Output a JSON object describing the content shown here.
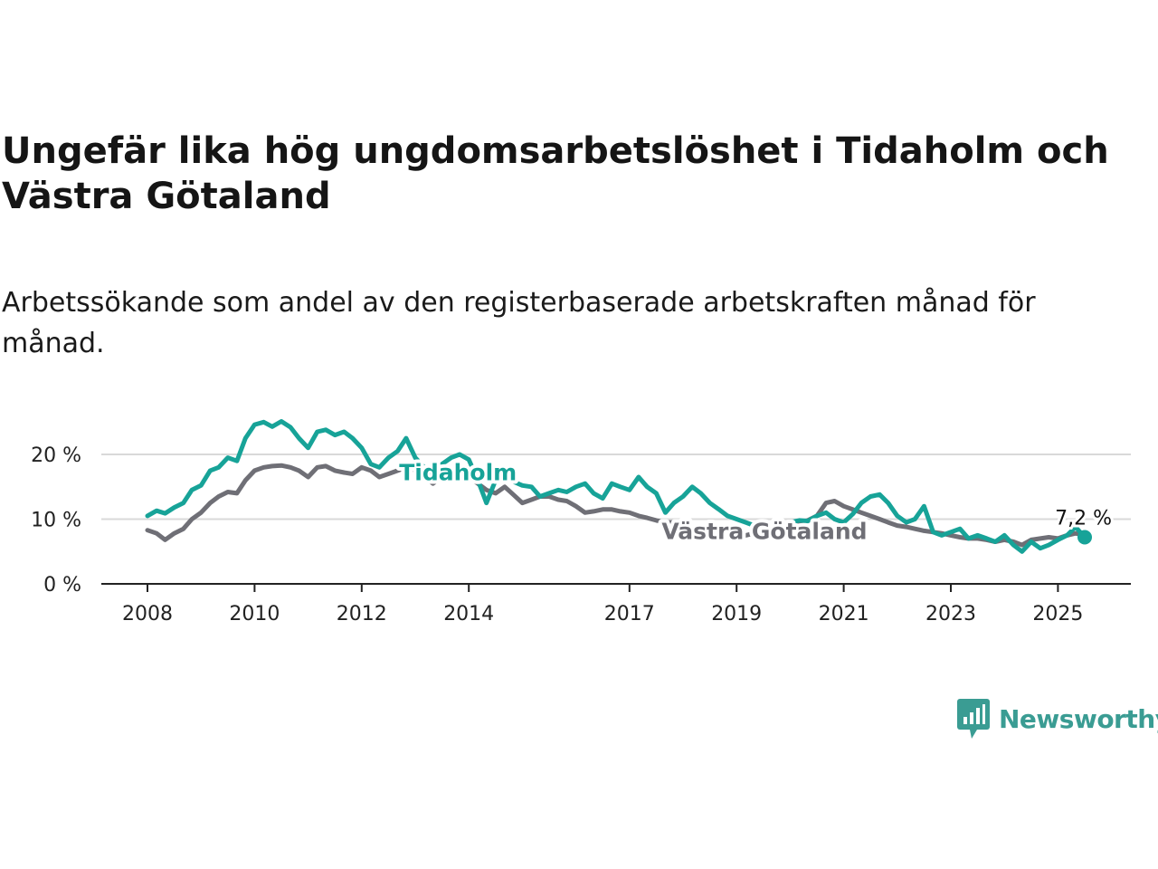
{
  "title": "Ungefär lika hög ungdomsarbetslöshet i Tidaholm och Västra Götaland",
  "subtitle": "Arbetssökande som andel av den registerbaserade arbetskraften månad för månad.",
  "brand": {
    "name": "Newsworthy",
    "icon": "newsworthy-logo-icon",
    "color": "#3a9c93"
  },
  "colors": {
    "tidaholm": "#17a398",
    "vastra_gotaland": "#6f6f76",
    "grid": "#d9d9d9",
    "axis": "#222222"
  },
  "chart_data": {
    "type": "line",
    "title": "Ungefär lika hög ungdomsarbetslöshet i Tidaholm och Västra Götaland",
    "xlabel": "",
    "ylabel": "",
    "xlim": [
      2008.0,
      2025.5
    ],
    "ylim": [
      0,
      20
    ],
    "y_ticks": [
      0,
      10,
      20
    ],
    "y_tick_labels": [
      "0 %",
      "10 %",
      "20 %"
    ],
    "x_ticks": [
      2008,
      2010,
      2012,
      2014,
      2017,
      2019,
      2021,
      2023,
      2025
    ],
    "x_tick_labels": [
      "2008",
      "2010",
      "2012",
      "2014",
      "2017",
      "2019",
      "2021",
      "2023",
      "2025"
    ],
    "grid": true,
    "end_label": "7,2 %",
    "series": [
      {
        "name": "Tidaholm",
        "color": "#17a398",
        "points": [
          [
            2008.0,
            10.5
          ],
          [
            2008.17,
            11.3
          ],
          [
            2008.33,
            10.9
          ],
          [
            2008.5,
            11.8
          ],
          [
            2008.67,
            12.5
          ],
          [
            2008.83,
            14.5
          ],
          [
            2009.0,
            15.2
          ],
          [
            2009.17,
            17.5
          ],
          [
            2009.33,
            18.0
          ],
          [
            2009.5,
            19.5
          ],
          [
            2009.67,
            19.0
          ],
          [
            2009.83,
            22.5
          ],
          [
            2010.0,
            24.6
          ],
          [
            2010.17,
            25.0
          ],
          [
            2010.33,
            24.3
          ],
          [
            2010.5,
            25.1
          ],
          [
            2010.67,
            24.2
          ],
          [
            2010.83,
            22.5
          ],
          [
            2011.0,
            21.0
          ],
          [
            2011.17,
            23.5
          ],
          [
            2011.33,
            23.8
          ],
          [
            2011.5,
            23.0
          ],
          [
            2011.67,
            23.5
          ],
          [
            2011.83,
            22.5
          ],
          [
            2012.0,
            21.0
          ],
          [
            2012.17,
            18.5
          ],
          [
            2012.33,
            18.0
          ],
          [
            2012.5,
            19.5
          ],
          [
            2012.67,
            20.5
          ],
          [
            2012.83,
            22.5
          ],
          [
            2013.0,
            19.5
          ],
          [
            2013.17,
            18.0
          ],
          [
            2013.33,
            16.5
          ],
          [
            2013.5,
            18.5
          ],
          [
            2013.67,
            19.5
          ],
          [
            2013.83,
            20.0
          ],
          [
            2014.0,
            19.2
          ],
          [
            2014.17,
            16.0
          ],
          [
            2014.33,
            12.5
          ],
          [
            2014.5,
            16.0
          ],
          [
            2014.67,
            16.5
          ],
          [
            2014.83,
            15.8
          ],
          [
            2015.0,
            15.2
          ],
          [
            2015.17,
            15.0
          ],
          [
            2015.33,
            13.5
          ],
          [
            2015.5,
            14.0
          ],
          [
            2015.67,
            14.5
          ],
          [
            2015.83,
            14.2
          ],
          [
            2016.0,
            15.0
          ],
          [
            2016.17,
            15.5
          ],
          [
            2016.33,
            14.0
          ],
          [
            2016.5,
            13.2
          ],
          [
            2016.67,
            15.5
          ],
          [
            2016.83,
            15.0
          ],
          [
            2017.0,
            14.5
          ],
          [
            2017.17,
            16.5
          ],
          [
            2017.33,
            15.0
          ],
          [
            2017.5,
            14.0
          ],
          [
            2017.67,
            11.0
          ],
          [
            2017.83,
            12.5
          ],
          [
            2018.0,
            13.5
          ],
          [
            2018.17,
            15.0
          ],
          [
            2018.33,
            14.0
          ],
          [
            2018.5,
            12.5
          ],
          [
            2018.67,
            11.5
          ],
          [
            2018.83,
            10.5
          ],
          [
            2019.0,
            10.0
          ],
          [
            2019.17,
            9.5
          ],
          [
            2019.33,
            9.0
          ],
          [
            2019.5,
            9.3
          ],
          [
            2019.67,
            8.8
          ],
          [
            2019.83,
            9.0
          ],
          [
            2020.0,
            9.5
          ],
          [
            2020.17,
            9.8
          ],
          [
            2020.33,
            9.7
          ],
          [
            2020.5,
            10.5
          ],
          [
            2020.67,
            11.0
          ],
          [
            2020.83,
            10.0
          ],
          [
            2021.0,
            9.5
          ],
          [
            2021.17,
            10.8
          ],
          [
            2021.33,
            12.5
          ],
          [
            2021.5,
            13.5
          ],
          [
            2021.67,
            13.8
          ],
          [
            2021.83,
            12.5
          ],
          [
            2022.0,
            10.5
          ],
          [
            2022.17,
            9.5
          ],
          [
            2022.33,
            10.0
          ],
          [
            2022.5,
            12.0
          ],
          [
            2022.67,
            8.0
          ],
          [
            2022.83,
            7.5
          ],
          [
            2023.0,
            8.0
          ],
          [
            2023.17,
            8.5
          ],
          [
            2023.33,
            7.0
          ],
          [
            2023.5,
            7.5
          ],
          [
            2023.67,
            7.0
          ],
          [
            2023.83,
            6.5
          ],
          [
            2024.0,
            7.5
          ],
          [
            2024.17,
            6.0
          ],
          [
            2024.33,
            5.0
          ],
          [
            2024.5,
            6.5
          ],
          [
            2024.67,
            5.5
          ],
          [
            2024.83,
            6.0
          ],
          [
            2025.0,
            6.8
          ],
          [
            2025.17,
            7.5
          ],
          [
            2025.33,
            8.8
          ],
          [
            2025.5,
            7.2
          ]
        ]
      },
      {
        "name": "Västra Götaland",
        "color": "#6f6f76",
        "points": [
          [
            2008.0,
            8.3
          ],
          [
            2008.17,
            7.8
          ],
          [
            2008.33,
            6.8
          ],
          [
            2008.5,
            7.8
          ],
          [
            2008.67,
            8.5
          ],
          [
            2008.83,
            10.0
          ],
          [
            2009.0,
            11.0
          ],
          [
            2009.17,
            12.5
          ],
          [
            2009.33,
            13.5
          ],
          [
            2009.5,
            14.2
          ],
          [
            2009.67,
            14.0
          ],
          [
            2009.83,
            16.0
          ],
          [
            2010.0,
            17.5
          ],
          [
            2010.17,
            18.0
          ],
          [
            2010.33,
            18.2
          ],
          [
            2010.5,
            18.3
          ],
          [
            2010.67,
            18.0
          ],
          [
            2010.83,
            17.5
          ],
          [
            2011.0,
            16.5
          ],
          [
            2011.17,
            18.0
          ],
          [
            2011.33,
            18.2
          ],
          [
            2011.5,
            17.5
          ],
          [
            2011.67,
            17.2
          ],
          [
            2011.83,
            17.0
          ],
          [
            2012.0,
            18.0
          ],
          [
            2012.17,
            17.5
          ],
          [
            2012.33,
            16.5
          ],
          [
            2012.5,
            17.0
          ],
          [
            2012.67,
            17.5
          ],
          [
            2012.83,
            18.0
          ],
          [
            2013.0,
            17.5
          ],
          [
            2013.17,
            16.5
          ],
          [
            2013.33,
            15.5
          ],
          [
            2013.5,
            16.5
          ],
          [
            2013.67,
            17.0
          ],
          [
            2013.83,
            16.8
          ],
          [
            2014.0,
            16.5
          ],
          [
            2014.17,
            15.5
          ],
          [
            2014.33,
            14.5
          ],
          [
            2014.5,
            14.0
          ],
          [
            2014.67,
            15.0
          ],
          [
            2014.83,
            13.8
          ],
          [
            2015.0,
            12.5
          ],
          [
            2015.17,
            13.0
          ],
          [
            2015.33,
            13.5
          ],
          [
            2015.5,
            13.5
          ],
          [
            2015.67,
            13.0
          ],
          [
            2015.83,
            12.8
          ],
          [
            2016.0,
            12.0
          ],
          [
            2016.17,
            11.0
          ],
          [
            2016.33,
            11.2
          ],
          [
            2016.5,
            11.5
          ],
          [
            2016.67,
            11.5
          ],
          [
            2016.83,
            11.2
          ],
          [
            2017.0,
            11.0
          ],
          [
            2017.17,
            10.5
          ],
          [
            2017.33,
            10.2
          ],
          [
            2017.5,
            9.8
          ],
          [
            2017.67,
            9.5
          ],
          [
            2017.83,
            9.5
          ],
          [
            2018.0,
            9.0
          ],
          [
            2018.17,
            8.5
          ],
          [
            2018.33,
            8.2
          ],
          [
            2018.5,
            8.0
          ],
          [
            2018.67,
            8.0
          ],
          [
            2018.83,
            7.8
          ],
          [
            2019.0,
            7.5
          ],
          [
            2019.17,
            7.5
          ],
          [
            2019.33,
            7.8
          ],
          [
            2019.5,
            8.0
          ],
          [
            2019.67,
            8.2
          ],
          [
            2019.83,
            8.5
          ],
          [
            2020.0,
            9.0
          ],
          [
            2020.17,
            9.5
          ],
          [
            2020.33,
            9.8
          ],
          [
            2020.5,
            10.5
          ],
          [
            2020.67,
            12.5
          ],
          [
            2020.83,
            12.8
          ],
          [
            2021.0,
            12.0
          ],
          [
            2021.17,
            11.5
          ],
          [
            2021.33,
            11.0
          ],
          [
            2021.5,
            10.5
          ],
          [
            2021.67,
            10.0
          ],
          [
            2021.83,
            9.5
          ],
          [
            2022.0,
            9.0
          ],
          [
            2022.17,
            8.8
          ],
          [
            2022.33,
            8.5
          ],
          [
            2022.5,
            8.2
          ],
          [
            2022.67,
            8.0
          ],
          [
            2022.83,
            7.8
          ],
          [
            2023.0,
            7.5
          ],
          [
            2023.17,
            7.2
          ],
          [
            2023.33,
            7.0
          ],
          [
            2023.5,
            7.0
          ],
          [
            2023.67,
            6.8
          ],
          [
            2023.83,
            6.5
          ],
          [
            2024.0,
            6.8
          ],
          [
            2024.17,
            6.5
          ],
          [
            2024.33,
            6.0
          ],
          [
            2024.5,
            6.8
          ],
          [
            2024.67,
            7.0
          ],
          [
            2024.83,
            7.2
          ],
          [
            2025.0,
            7.0
          ],
          [
            2025.17,
            7.5
          ],
          [
            2025.33,
            7.8
          ],
          [
            2025.5,
            7.5
          ]
        ]
      }
    ]
  }
}
